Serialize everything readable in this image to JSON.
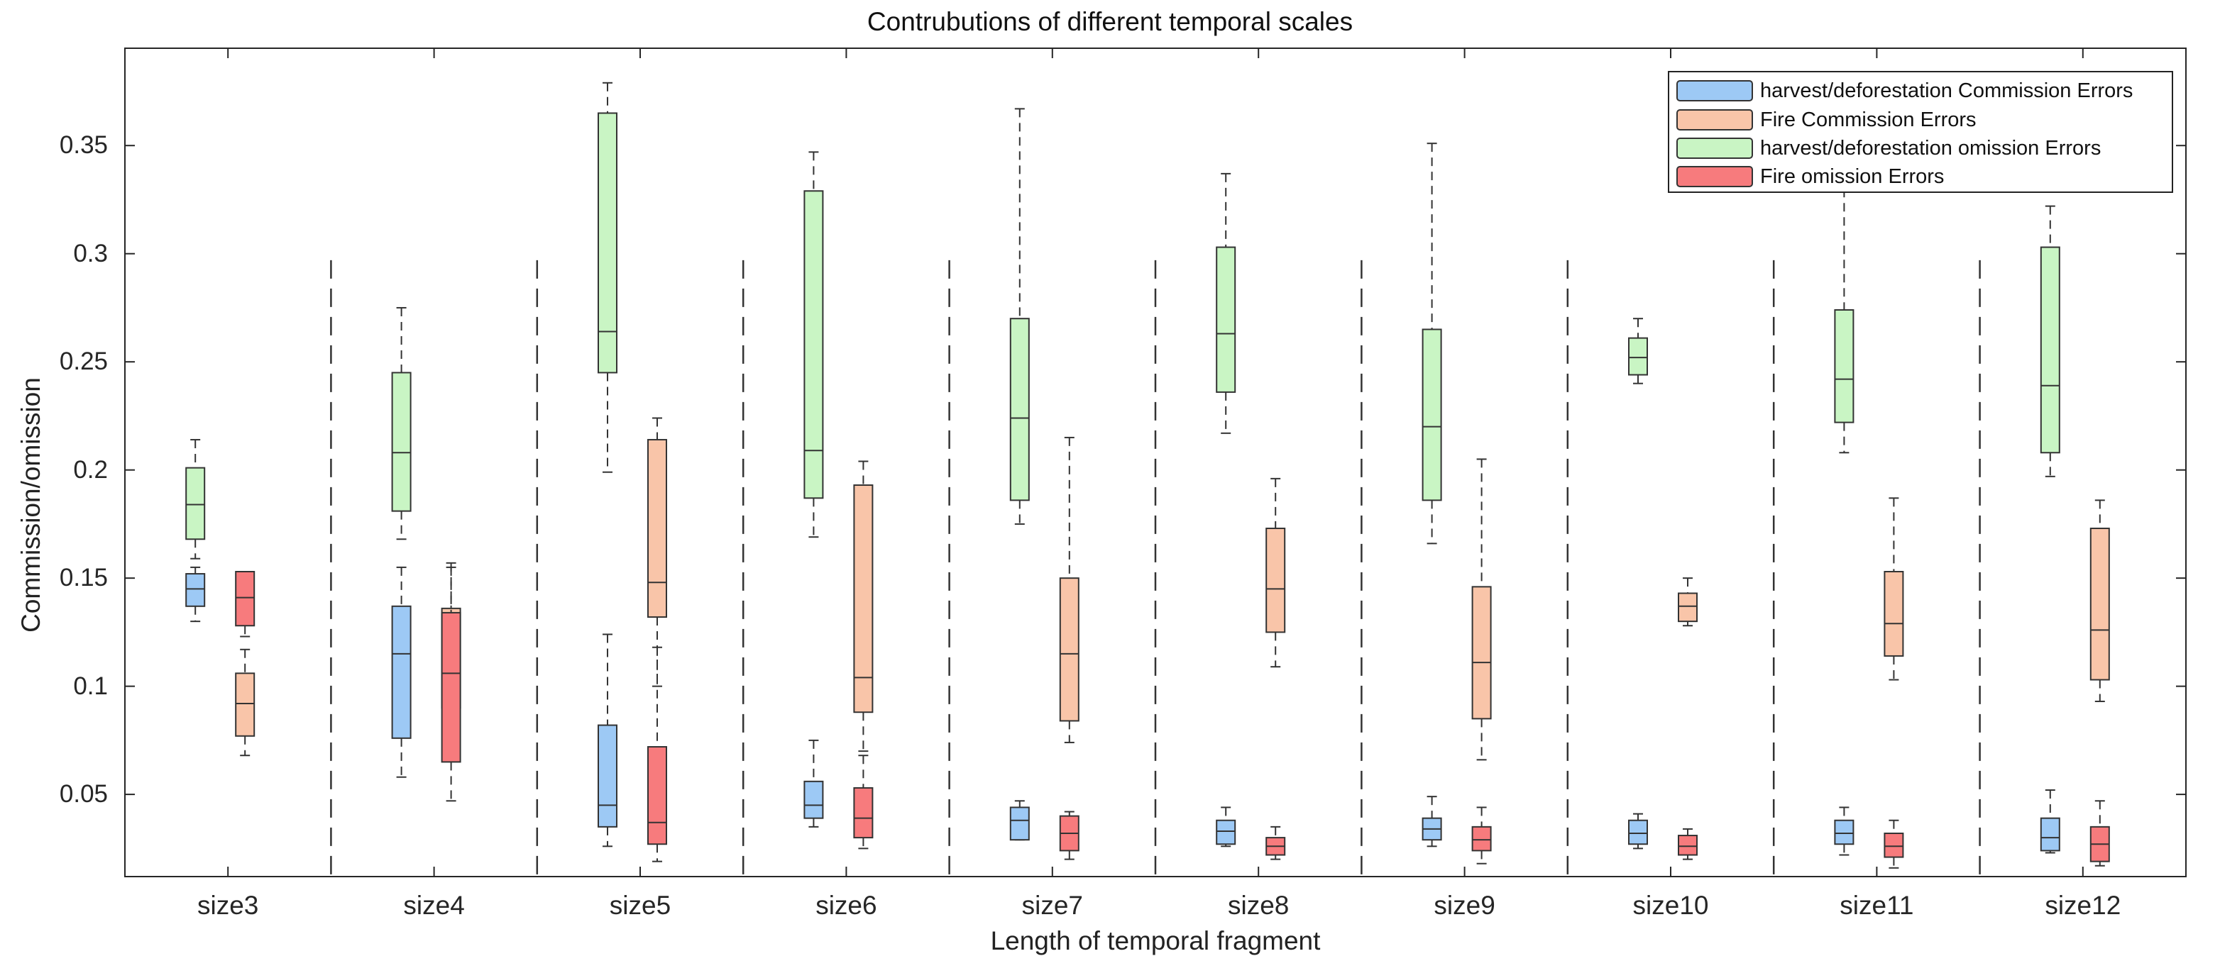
{
  "chart_data": {
    "type": "boxplot",
    "title": "Contrubutions of different temporal scales",
    "xlabel": "Length of temporal fragment",
    "ylabel": "Commission/omission",
    "ylim": [
      0.012,
      0.395
    ],
    "yticks": [
      0.05,
      0.1,
      0.15,
      0.2,
      0.25,
      0.3,
      0.35
    ],
    "ytick_labels": [
      "0.05",
      "0.1",
      "0.15",
      "0.2",
      "0.25",
      "0.3",
      "0.35"
    ],
    "categories": [
      "size3",
      "size4",
      "size5",
      "size6",
      "size7",
      "size8",
      "size9",
      "size10",
      "size11",
      "size12"
    ],
    "legend_position": "top-right",
    "series": [
      {
        "name": "harvest/deforestation Commission Errors",
        "color": "#9dc9f5",
        "boxes": [
          {
            "min": 0.13,
            "q1": 0.137,
            "median": 0.145,
            "q3": 0.152,
            "max": 0.155
          },
          {
            "min": 0.058,
            "q1": 0.076,
            "median": 0.115,
            "q3": 0.137,
            "max": 0.155
          },
          {
            "min": 0.026,
            "q1": 0.035,
            "median": 0.045,
            "q3": 0.082,
            "max": 0.124
          },
          {
            "min": 0.035,
            "q1": 0.039,
            "median": 0.045,
            "q3": 0.056,
            "max": 0.075
          },
          {
            "min": 0.029,
            "q1": 0.029,
            "median": 0.038,
            "q3": 0.044,
            "max": 0.047
          },
          {
            "min": 0.026,
            "q1": 0.027,
            "median": 0.033,
            "q3": 0.038,
            "max": 0.044
          },
          {
            "min": 0.026,
            "q1": 0.029,
            "median": 0.034,
            "q3": 0.039,
            "max": 0.049
          },
          {
            "min": 0.025,
            "q1": 0.027,
            "median": 0.032,
            "q3": 0.038,
            "max": 0.041
          },
          {
            "min": 0.022,
            "q1": 0.027,
            "median": 0.032,
            "q3": 0.038,
            "max": 0.044
          },
          {
            "min": 0.023,
            "q1": 0.024,
            "median": 0.03,
            "q3": 0.039,
            "max": 0.052
          }
        ]
      },
      {
        "name": "Fire Commission Errors",
        "color": "#f9c5a9",
        "boxes": [
          {
            "min": 0.068,
            "q1": 0.077,
            "median": 0.092,
            "q3": 0.106,
            "max": 0.117
          },
          {
            "min": 0.077,
            "q1": 0.09,
            "median": 0.11,
            "q3": 0.136,
            "max": 0.157
          },
          {
            "min": 0.1,
            "q1": 0.132,
            "median": 0.148,
            "q3": 0.214,
            "max": 0.224
          },
          {
            "min": 0.07,
            "q1": 0.088,
            "median": 0.104,
            "q3": 0.193,
            "max": 0.204
          },
          {
            "min": 0.074,
            "q1": 0.084,
            "median": 0.115,
            "q3": 0.15,
            "max": 0.215
          },
          {
            "min": 0.109,
            "q1": 0.125,
            "median": 0.145,
            "q3": 0.173,
            "max": 0.196
          },
          {
            "min": 0.066,
            "q1": 0.085,
            "median": 0.111,
            "q3": 0.146,
            "max": 0.205
          },
          {
            "min": 0.128,
            "q1": 0.13,
            "median": 0.137,
            "q3": 0.143,
            "max": 0.15
          },
          {
            "min": 0.103,
            "q1": 0.114,
            "median": 0.129,
            "q3": 0.153,
            "max": 0.187
          },
          {
            "min": 0.093,
            "q1": 0.103,
            "median": 0.126,
            "q3": 0.173,
            "max": 0.186
          }
        ]
      },
      {
        "name": "harvest/deforestation omission Errors",
        "color": "#c9f5c4",
        "boxes": [
          {
            "min": 0.159,
            "q1": 0.168,
            "median": 0.184,
            "q3": 0.201,
            "max": 0.214
          },
          {
            "min": 0.168,
            "q1": 0.181,
            "median": 0.208,
            "q3": 0.245,
            "max": 0.275
          },
          {
            "min": 0.199,
            "q1": 0.245,
            "median": 0.264,
            "q3": 0.365,
            "max": 0.379
          },
          {
            "min": 0.169,
            "q1": 0.187,
            "median": 0.209,
            "q3": 0.329,
            "max": 0.347
          },
          {
            "min": 0.175,
            "q1": 0.186,
            "median": 0.224,
            "q3": 0.27,
            "max": 0.367
          },
          {
            "min": 0.217,
            "q1": 0.236,
            "median": 0.263,
            "q3": 0.303,
            "max": 0.337
          },
          {
            "min": 0.166,
            "q1": 0.186,
            "median": 0.22,
            "q3": 0.265,
            "max": 0.351
          },
          {
            "min": 0.24,
            "q1": 0.244,
            "median": 0.252,
            "q3": 0.261,
            "max": 0.27
          },
          {
            "min": 0.208,
            "q1": 0.222,
            "median": 0.242,
            "q3": 0.274,
            "max": 0.33
          },
          {
            "min": 0.197,
            "q1": 0.208,
            "median": 0.239,
            "q3": 0.303,
            "max": 0.322
          }
        ]
      },
      {
        "name": "Fire omission Errors",
        "color": "#f77b7d",
        "boxes": [
          {
            "min": 0.123,
            "q1": 0.128,
            "median": 0.141,
            "q3": 0.153,
            "max": 0.153
          },
          {
            "min": 0.047,
            "q1": 0.065,
            "median": 0.106,
            "q3": 0.134,
            "max": 0.155
          },
          {
            "min": 0.019,
            "q1": 0.027,
            "median": 0.037,
            "q3": 0.072,
            "max": 0.118
          },
          {
            "min": 0.025,
            "q1": 0.03,
            "median": 0.039,
            "q3": 0.053,
            "max": 0.068
          },
          {
            "min": 0.02,
            "q1": 0.024,
            "median": 0.032,
            "q3": 0.04,
            "max": 0.042
          },
          {
            "min": 0.02,
            "q1": 0.022,
            "median": 0.026,
            "q3": 0.03,
            "max": 0.035
          },
          {
            "min": 0.018,
            "q1": 0.024,
            "median": 0.029,
            "q3": 0.035,
            "max": 0.044
          },
          {
            "min": 0.02,
            "q1": 0.022,
            "median": 0.026,
            "q3": 0.031,
            "max": 0.034
          },
          {
            "min": 0.016,
            "q1": 0.021,
            "median": 0.026,
            "q3": 0.032,
            "max": 0.038
          },
          {
            "min": 0.017,
            "q1": 0.019,
            "median": 0.027,
            "q3": 0.035,
            "max": 0.047
          }
        ]
      }
    ]
  }
}
